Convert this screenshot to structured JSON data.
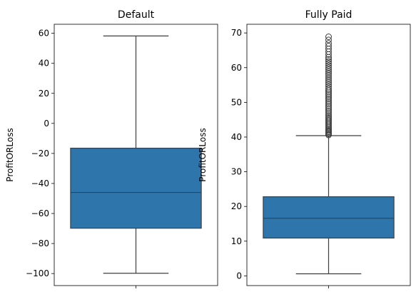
{
  "chart_data": [
    {
      "type": "box",
      "title": "Default",
      "xlabel": "",
      "ylabel": "ProfitORLoss",
      "ylim": [
        -108,
        66
      ],
      "yticks": [
        -100,
        -80,
        -60,
        -40,
        -20,
        0,
        20,
        40,
        60
      ],
      "ytick_labels": [
        "−100",
        "−80",
        "−60",
        "−40",
        "−20",
        "0",
        "20",
        "40",
        "60"
      ],
      "box": {
        "whisker_low": -99.8,
        "q1": -69.8,
        "median": -46.0,
        "q3": -16.5,
        "whisker_high": 58.2
      },
      "outliers": [],
      "color": "#2e75ab"
    },
    {
      "type": "box",
      "title": "Fully Paid",
      "xlabel": "",
      "ylabel": "ProfitORLoss",
      "ylim": [
        -2.8,
        72.5
      ],
      "yticks": [
        0,
        10,
        20,
        30,
        40,
        50,
        60,
        70
      ],
      "ytick_labels": [
        "0",
        "10",
        "20",
        "30",
        "40",
        "50",
        "60",
        "70"
      ],
      "box": {
        "whisker_low": 0.6,
        "q1": 10.9,
        "median": 16.6,
        "q3": 22.8,
        "whisker_high": 40.4
      },
      "outliers": [
        40.6,
        40.9,
        41.2,
        41.5,
        41.8,
        42.1,
        42.4,
        42.8,
        43.2,
        43.6,
        44.0,
        44.4,
        44.8,
        45.2,
        45.6,
        46.0,
        46.5,
        47.0,
        47.5,
        48.0,
        48.5,
        49.0,
        49.5,
        50.0,
        50.5,
        51.0,
        51.5,
        52.0,
        52.5,
        53.0,
        53.5,
        54.0,
        54.6,
        55.2,
        55.8,
        56.4,
        57.0,
        57.6,
        58.2,
        58.8,
        59.4,
        60.0,
        60.6,
        61.2,
        61.8,
        62.4,
        63.0,
        63.8,
        64.6,
        65.4,
        66.2,
        67.0,
        68.0,
        68.9
      ],
      "color": "#2e75ab"
    }
  ]
}
